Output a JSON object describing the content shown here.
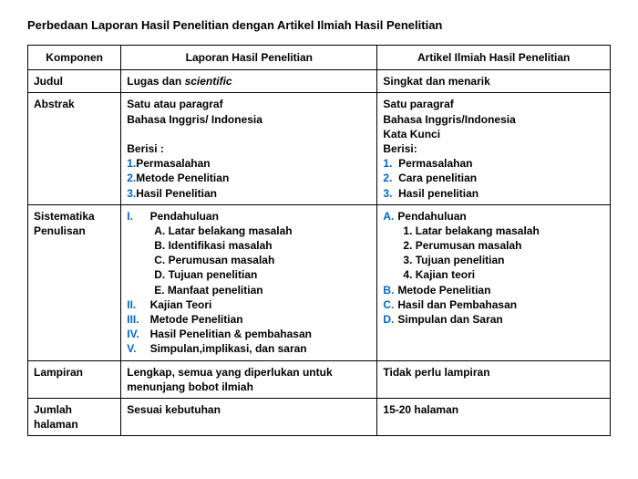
{
  "title": "Perbedaan Laporan Hasil Penelitian dengan Artikel Ilmiah Hasil Penelitian",
  "colors": {
    "accent": "#0066cc",
    "border": "#000000",
    "bg": "#ffffff",
    "text": "#000000"
  },
  "headers": {
    "c1": "Komponen",
    "c2": "Laporan Hasil Penelitian",
    "c3": "Artikel Ilmiah Hasil Penelitian"
  },
  "rows": {
    "judul": {
      "label": "Judul",
      "col2_a": "Lugas dan ",
      "col2_b": "scientific",
      "col3": "Singkat dan menarik"
    },
    "abstrak": {
      "label": "Abstrak",
      "col2": {
        "l1": "Satu atau paragraf",
        "l2": "Bahasa Inggris/ Indonesia",
        "l3": "Berisi :",
        "i1n": "1.",
        "i1": "Permasalahan",
        "i2n": "2.",
        "i2": "Metode Penelitian",
        "i3n": "3.",
        "i3": "Hasil Penelitian"
      },
      "col3": {
        "l1": "Satu paragraf",
        "l2": "Bahasa Inggris/Indonesia",
        "l3": "Kata Kunci",
        "l4": "Berisi:",
        "i1n": "1.",
        "i1": "Permasalahan",
        "i2n": "2.",
        "i2": "Cara penelitian",
        "i3n": "3.",
        "i3": "Hasil penelitian"
      }
    },
    "sistematika": {
      "label_l1": "Sistematika",
      "label_l2": "Penulisan",
      "col2": {
        "r1": "I.",
        "r1t": "Pendahuluan",
        "a": "A. Latar belakang masalah",
        "b": "B. Identifikasi masalah",
        "c": "C. Perumusan masalah",
        "d": "D. Tujuan penelitian",
        "e": "E. Manfaat penelitian",
        "r2": "II.",
        "r2t": "Kajian Teori",
        "r3": "III.",
        "r3t": "Metode Penelitian",
        "r4": "IV.",
        "r4t": "Hasil Penelitian & pembahasan",
        "r5": "V.",
        "r5t": "Simpulan,implikasi, dan saran"
      },
      "col3": {
        "Am": "A.",
        "A": "Pendahuluan",
        "a1": "1. Latar belakang masalah",
        "a2": "2. Perumusan masalah",
        "a3": "3. Tujuan penelitian",
        "a4": "4. Kajian teori",
        "Bm": "B.",
        "B": "Metode Penelitian",
        "Cm": "C.",
        "C": "Hasil dan Pembahasan",
        "Dm": "D.",
        "D": "Simpulan dan Saran"
      }
    },
    "lampiran": {
      "label": "Lampiran",
      "col2": "Lengkap, semua yang diperlukan untuk menunjang bobot ilmiah",
      "col3": "Tidak perlu lampiran"
    },
    "jumlah": {
      "label_l1": "Jumlah",
      "label_l2": "halaman",
      "col2": "Sesuai kebutuhan",
      "col3": "15-20 halaman"
    }
  }
}
